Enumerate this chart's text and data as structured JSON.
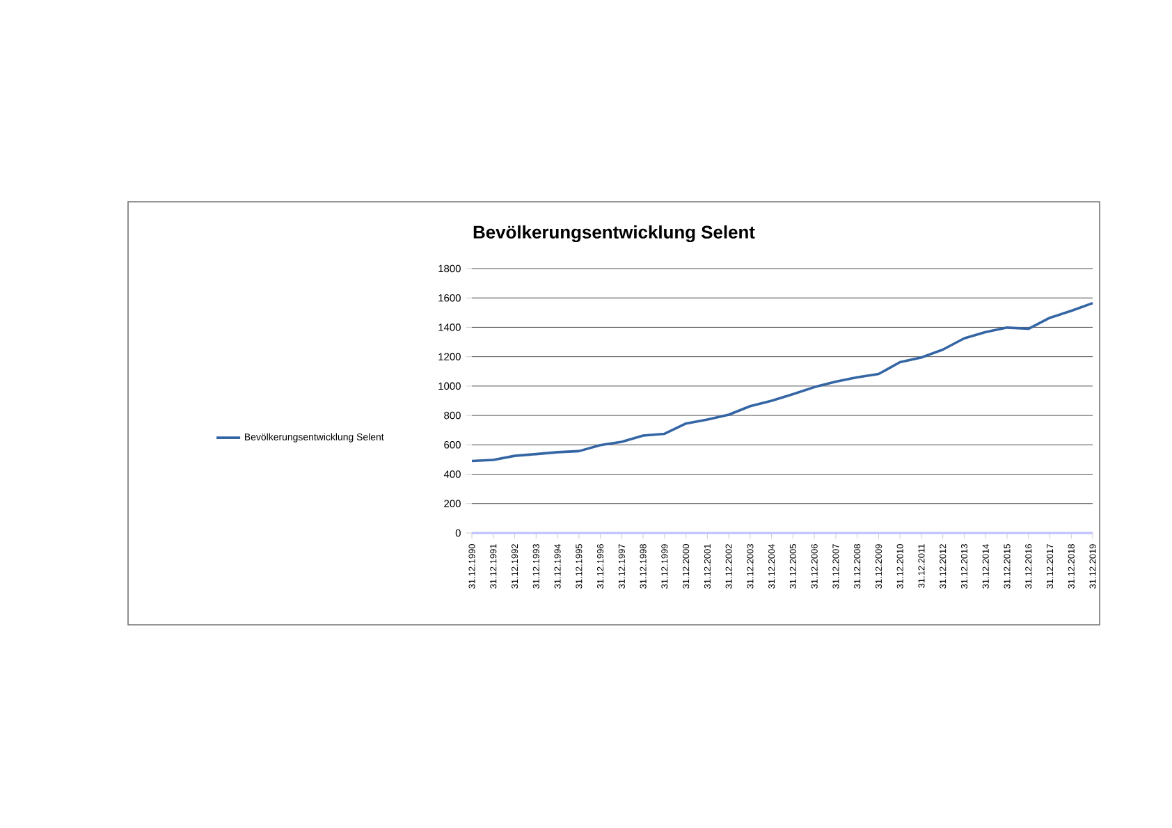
{
  "chart_data": {
    "type": "line",
    "title": "Bevölkerungsentwicklung Selent",
    "categories": [
      "31.12.1990",
      "31.12.1991",
      "31.12.1992",
      "31.12.1993",
      "31.12.1994",
      "31.12.1995",
      "31.12.1996",
      "31.12.1997",
      "31.12.1998",
      "31.12.1999",
      "31.12.2000",
      "31.12.2001",
      "31.12.2002",
      "31.12.2003",
      "31.12.2004",
      "31.12.2005",
      "31.12.2006",
      "31.12.2007",
      "31.12.2008",
      "31.12.2009",
      "31.12.2010",
      "31.12.2011",
      "31.12.2012",
      "31.12.2013",
      "31.12.2014",
      "31.12.2015",
      "31.12.2016",
      "31.12.2017",
      "31.12.2018",
      "31.12.2019"
    ],
    "series": [
      {
        "name": "Bevölkerungsentwicklung Selent",
        "color": "#3465a4",
        "values": [
          490,
          497,
          525,
          537,
          550,
          557,
          598,
          620,
          663,
          675,
          745,
          772,
          805,
          863,
          900,
          945,
          993,
          1030,
          1060,
          1082,
          1163,
          1195,
          1248,
          1325,
          1368,
          1398,
          1390,
          1465,
          1512,
          1565
        ]
      }
    ],
    "ylim": [
      0,
      1800
    ],
    "yticks": [
      0,
      200,
      400,
      600,
      800,
      1000,
      1200,
      1400,
      1600,
      1800
    ],
    "grid": "y",
    "legend": "left",
    "marker": "none",
    "line_style": "solid"
  }
}
